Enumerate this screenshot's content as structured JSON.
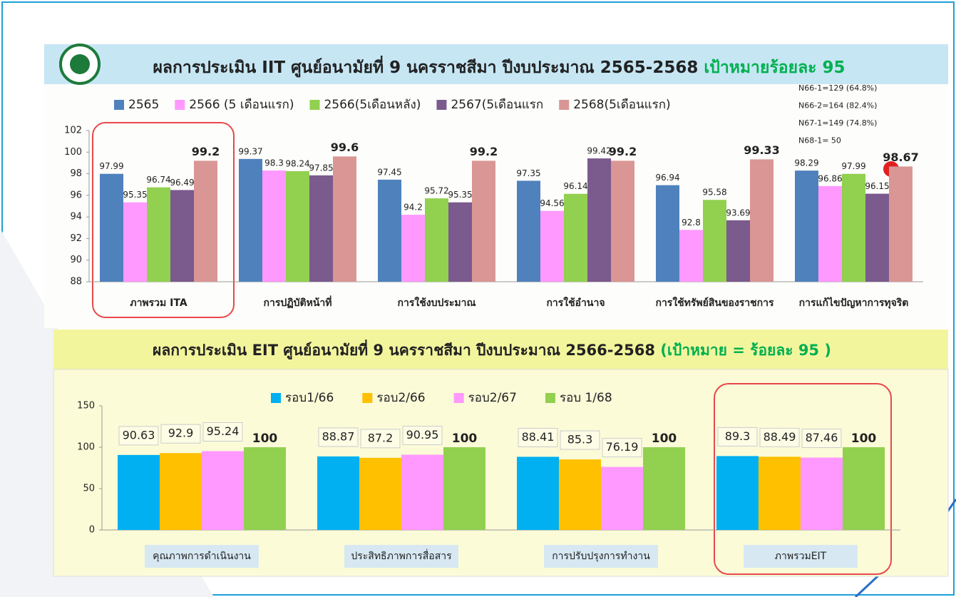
{
  "chart_data": [
    {
      "type": "bar",
      "title": "ผลการประเมิน IIT ศูนย์อนามัยที่ 9 นครราชสีมา ปีงบประมาณ 2565-2568",
      "subtitle": "เป้าหมายร้อยละ 95",
      "annotations": [
        "N66-1=129 (64.8%)",
        "N66-2=164 (82.4%)",
        "N67-1=149 (74.8%)",
        "N68-1= 50"
      ],
      "categories": [
        "ภาพรวม ITA",
        "การปฏิบัติหน้าที่",
        "การใช้งบประมาณ",
        "การใช้อำนาจ",
        "การใช้ทรัพย์สินของราชการ",
        "การแก้ไขปัญหาการทุจริต"
      ],
      "series": [
        {
          "name": "2565",
          "color": "#4f81bd",
          "values": [
            97.99,
            99.37,
            97.45,
            97.35,
            96.94,
            98.29
          ]
        },
        {
          "name": "2566 (5 เดือนแรก)",
          "color": "#ff99ff",
          "values": [
            95.35,
            98.3,
            94.2,
            94.56,
            92.8,
            96.86
          ]
        },
        {
          "name": "2566(5เดือนหลัง)",
          "color": "#92d050",
          "values": [
            96.74,
            98.24,
            95.72,
            96.14,
            95.58,
            97.99
          ]
        },
        {
          "name": "2567(5เดือนแรก",
          "color": "#7b5a8e",
          "values": [
            96.49,
            97.85,
            95.35,
            99.42,
            93.69,
            96.15
          ]
        },
        {
          "name": "2568(5เดือนแรก)",
          "color": "#d99694",
          "label_color": "#00b050",
          "values": [
            99.2,
            99.6,
            99.2,
            99.2,
            99.33,
            98.67
          ]
        }
      ],
      "ylim": [
        88,
        102
      ],
      "yticks": [
        88,
        90,
        92,
        94,
        96,
        98,
        100,
        102
      ],
      "grid": false
    },
    {
      "type": "bar",
      "title": "ผลการประเมิน EIT ศูนย์อนามัยที่ 9 นครราชสีมา ปีงบประมาณ 2566-2568",
      "subtitle": "(เป้าหมาย = ร้อยละ 95 )",
      "categories": [
        "คุณภาพการดำเนินงาน",
        "ประสิทธิภาพการสื่อสาร",
        "การปรับปรุงการทำงาน",
        "ภาพรวมEIT"
      ],
      "series": [
        {
          "name": "รอบ1/66",
          "color": "#00b0f0",
          "values": [
            90.63,
            88.87,
            88.41,
            89.3
          ]
        },
        {
          "name": "รอบ2/66",
          "color": "#ffc000",
          "values": [
            92.9,
            87.2,
            85.3,
            88.49
          ]
        },
        {
          "name": "รอบ2/67",
          "color": "#ff99ff",
          "values": [
            95.24,
            90.95,
            76.19,
            87.46
          ]
        },
        {
          "name": "รอบ 1/68",
          "color": "#92d050",
          "label_color": "#00b050",
          "values": [
            100,
            100,
            100,
            100
          ]
        }
      ],
      "ylim": [
        0,
        150
      ],
      "yticks": [
        0,
        50,
        100,
        150
      ],
      "grid": false
    }
  ]
}
